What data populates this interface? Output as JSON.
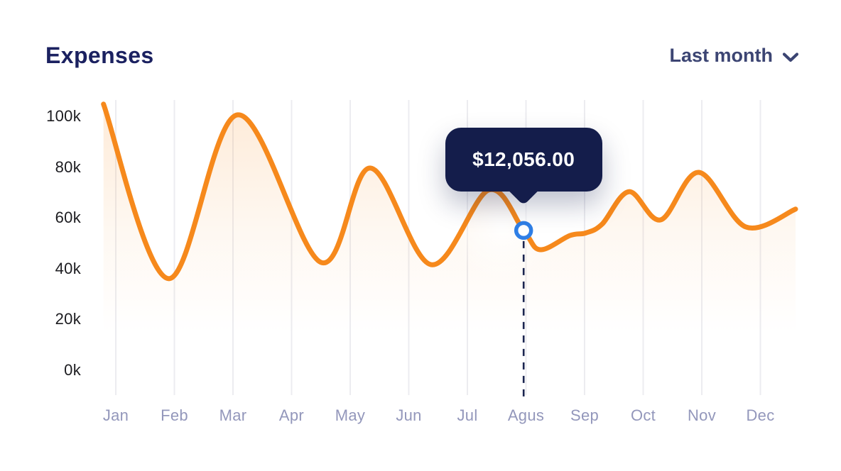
{
  "header": {
    "title": "Expenses",
    "range_selector": {
      "label": "Last month",
      "icon": "chevron-down-icon"
    }
  },
  "colors": {
    "title": "#1B2160",
    "selector": "#3C4573",
    "line": "#F6891C",
    "fill": "#F6891C",
    "marker_ring": "#2F7FE6",
    "marker_fill": "#FFFFFF",
    "dashed": "#1B2550",
    "tooltip_bg": "#141D4B",
    "tooltip_text": "#FFFFFF",
    "x_label": "#9397BB",
    "y_label": "#1C1C20",
    "gridline": "#ECECF0"
  },
  "chart_data": {
    "type": "area",
    "title": "Expenses",
    "xlabel": "",
    "ylabel": "",
    "categories": [
      "Jan",
      "Feb",
      "Mar",
      "Apr",
      "May",
      "Jun",
      "Jul",
      "Agus",
      "Sep",
      "Oct",
      "Nov",
      "Dec"
    ],
    "y_ticks": [
      {
        "label": "100k",
        "value": 100
      },
      {
        "label": "80k",
        "value": 80
      },
      {
        "label": "60k",
        "value": 60
      },
      {
        "label": "40k",
        "value": 40
      },
      {
        "label": "20k",
        "value": 20
      },
      {
        "label": "0k",
        "value": 0
      }
    ],
    "ylim": [
      0,
      110
    ],
    "grid": "vertical",
    "legend": false,
    "unit": "k",
    "series": [
      {
        "name": "Expenses",
        "values_k_at_months": [
          103,
          38,
          100,
          58,
          79,
          45,
          66,
          55,
          56,
          66,
          77,
          62
        ],
        "curve_points": [
          {
            "m": -0.21,
            "v": 104.8
          },
          {
            "m": 0.9,
            "v": 36
          },
          {
            "m": 2.08,
            "v": 100.6
          },
          {
            "m": 3.5,
            "v": 42.4
          },
          {
            "m": 4.34,
            "v": 79.6
          },
          {
            "m": 5.38,
            "v": 41.5
          },
          {
            "m": 6.36,
            "v": 70.9
          },
          {
            "m": 6.96,
            "v": 55
          },
          {
            "m": 7.24,
            "v": 47.4
          },
          {
            "m": 7.75,
            "v": 53
          },
          {
            "m": 8.02,
            "v": 54
          },
          {
            "m": 8.3,
            "v": 57.5
          },
          {
            "m": 8.76,
            "v": 70.3
          },
          {
            "m": 9.3,
            "v": 59.2
          },
          {
            "m": 9.95,
            "v": 77.9
          },
          {
            "m": 10.75,
            "v": 56.4
          },
          {
            "m": 11.6,
            "v": 63.4
          }
        ]
      }
    ],
    "selected_point": {
      "category": "Agus",
      "m": 6.96,
      "v": 55,
      "tooltip_label": "$12,056.00"
    }
  }
}
